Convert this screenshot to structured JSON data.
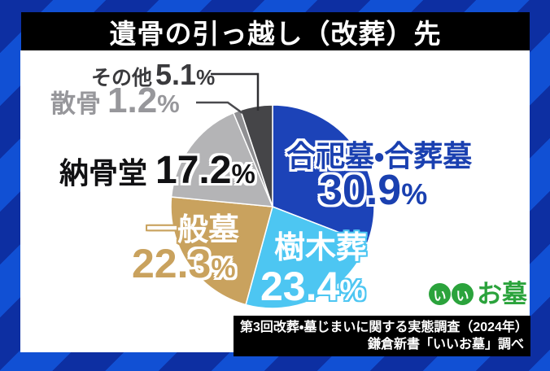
{
  "title": "遺骨の引っ越し（改葬）先",
  "background": {
    "stripe_light": "#1150d4",
    "stripe_dark": "#0d2fa2"
  },
  "chart_data": {
    "type": "pie",
    "title": "遺骨の引っ越し（改葬）先",
    "start_angle_deg": 0,
    "direction": "clockwise",
    "legend_position": "around",
    "segments": [
      {
        "label": "合祀墓・合葬墓",
        "value": 30.9,
        "color": "#1c43b8"
      },
      {
        "label": "樹木葬",
        "value": 23.4,
        "color": "#4dc6f2"
      },
      {
        "label": "一般墓",
        "value": 22.3,
        "color": "#c9a25e"
      },
      {
        "label": "納骨堂",
        "value": 17.2,
        "color": "#b4b4b6"
      },
      {
        "label": "散骨",
        "value": 1.2,
        "color": "#8f8f92"
      },
      {
        "label": "その他",
        "value": 5.1,
        "color": "#454548"
      }
    ]
  },
  "labels": {
    "goshi": {
      "name": "合祀墓・合葬墓",
      "number": "30.9",
      "pct": "%"
    },
    "jumoku": {
      "name": "樹木葬",
      "number": "23.4",
      "pct": "%"
    },
    "ippan": {
      "name": "一般墓",
      "number": "22.3",
      "pct": "%"
    },
    "noukotsu": {
      "name": "納骨堂",
      "number": "17.2",
      "pct": "%"
    },
    "sankotsu": {
      "name": "散骨",
      "number": "1.2",
      "pct": "%"
    },
    "sonota": {
      "name": "その他",
      "number": "5.1",
      "pct": "%"
    }
  },
  "logo": {
    "circle1": "い",
    "circle2": "い",
    "text": "お墓",
    "color": "#2ba33c"
  },
  "source": {
    "line1": "第3回改葬・墓じまいに関する実態調査（2024年）",
    "line2": "鎌倉新書「いいお墓」調べ"
  }
}
